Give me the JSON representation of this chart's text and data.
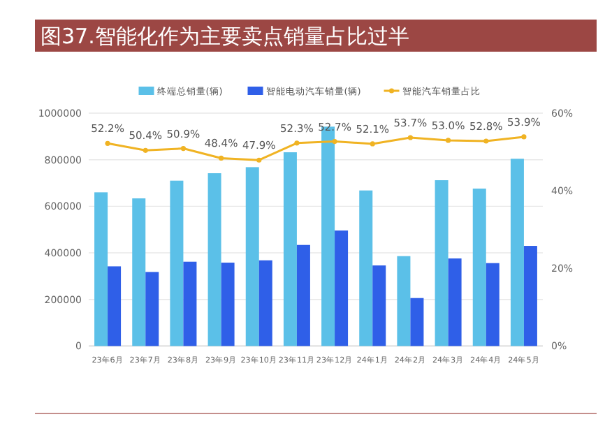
{
  "chart_data": {
    "type": "bar",
    "title": "图37.智能化作为主要卖点销量占比过半",
    "categories": [
      "23年6月",
      "23年7月",
      "23年8月",
      "23年9月",
      "23年10月",
      "23年11月",
      "23年12月",
      "24年1月",
      "24年2月",
      "24年3月",
      "24年4月",
      "24年5月"
    ],
    "series": [
      {
        "name": "终端总销量(辆)",
        "color": "#5bc0e8",
        "values": [
          660000,
          634000,
          710000,
          742000,
          768000,
          832000,
          942000,
          668000,
          386000,
          712000,
          676000,
          804000
        ]
      },
      {
        "name": "智能电动汽车销量(辆)",
        "color": "#2f5fe8",
        "values": [
          342000,
          318000,
          362000,
          358000,
          368000,
          434000,
          496000,
          346000,
          206000,
          376000,
          356000,
          430000
        ]
      },
      {
        "name": "智能汽车销量占比",
        "type": "line",
        "axis": "y2",
        "color": "#f0b323",
        "marker": "circle",
        "values": [
          52.2,
          50.4,
          50.9,
          48.4,
          47.9,
          52.3,
          52.7,
          52.1,
          53.7,
          53.0,
          52.8,
          53.9
        ],
        "value_labels": [
          "52.2%",
          "50.4%",
          "50.9%",
          "48.4%",
          "47.9%",
          "52.3%",
          "52.7%",
          "52.1%",
          "53.7%",
          "53.0%",
          "52.8%",
          "53.9%"
        ]
      }
    ],
    "ylim": [
      0,
      1000000
    ],
    "yticks": [
      0,
      200000,
      400000,
      600000,
      800000,
      1000000
    ],
    "y2lim": [
      0,
      60
    ],
    "y2ticks": [
      {
        "value": 0,
        "label": "0%"
      },
      {
        "value": 20,
        "label": "20%"
      },
      {
        "value": 40,
        "label": "40%"
      },
      {
        "value": 60,
        "label": "60%"
      }
    ],
    "grid": "y",
    "legend": "top"
  }
}
